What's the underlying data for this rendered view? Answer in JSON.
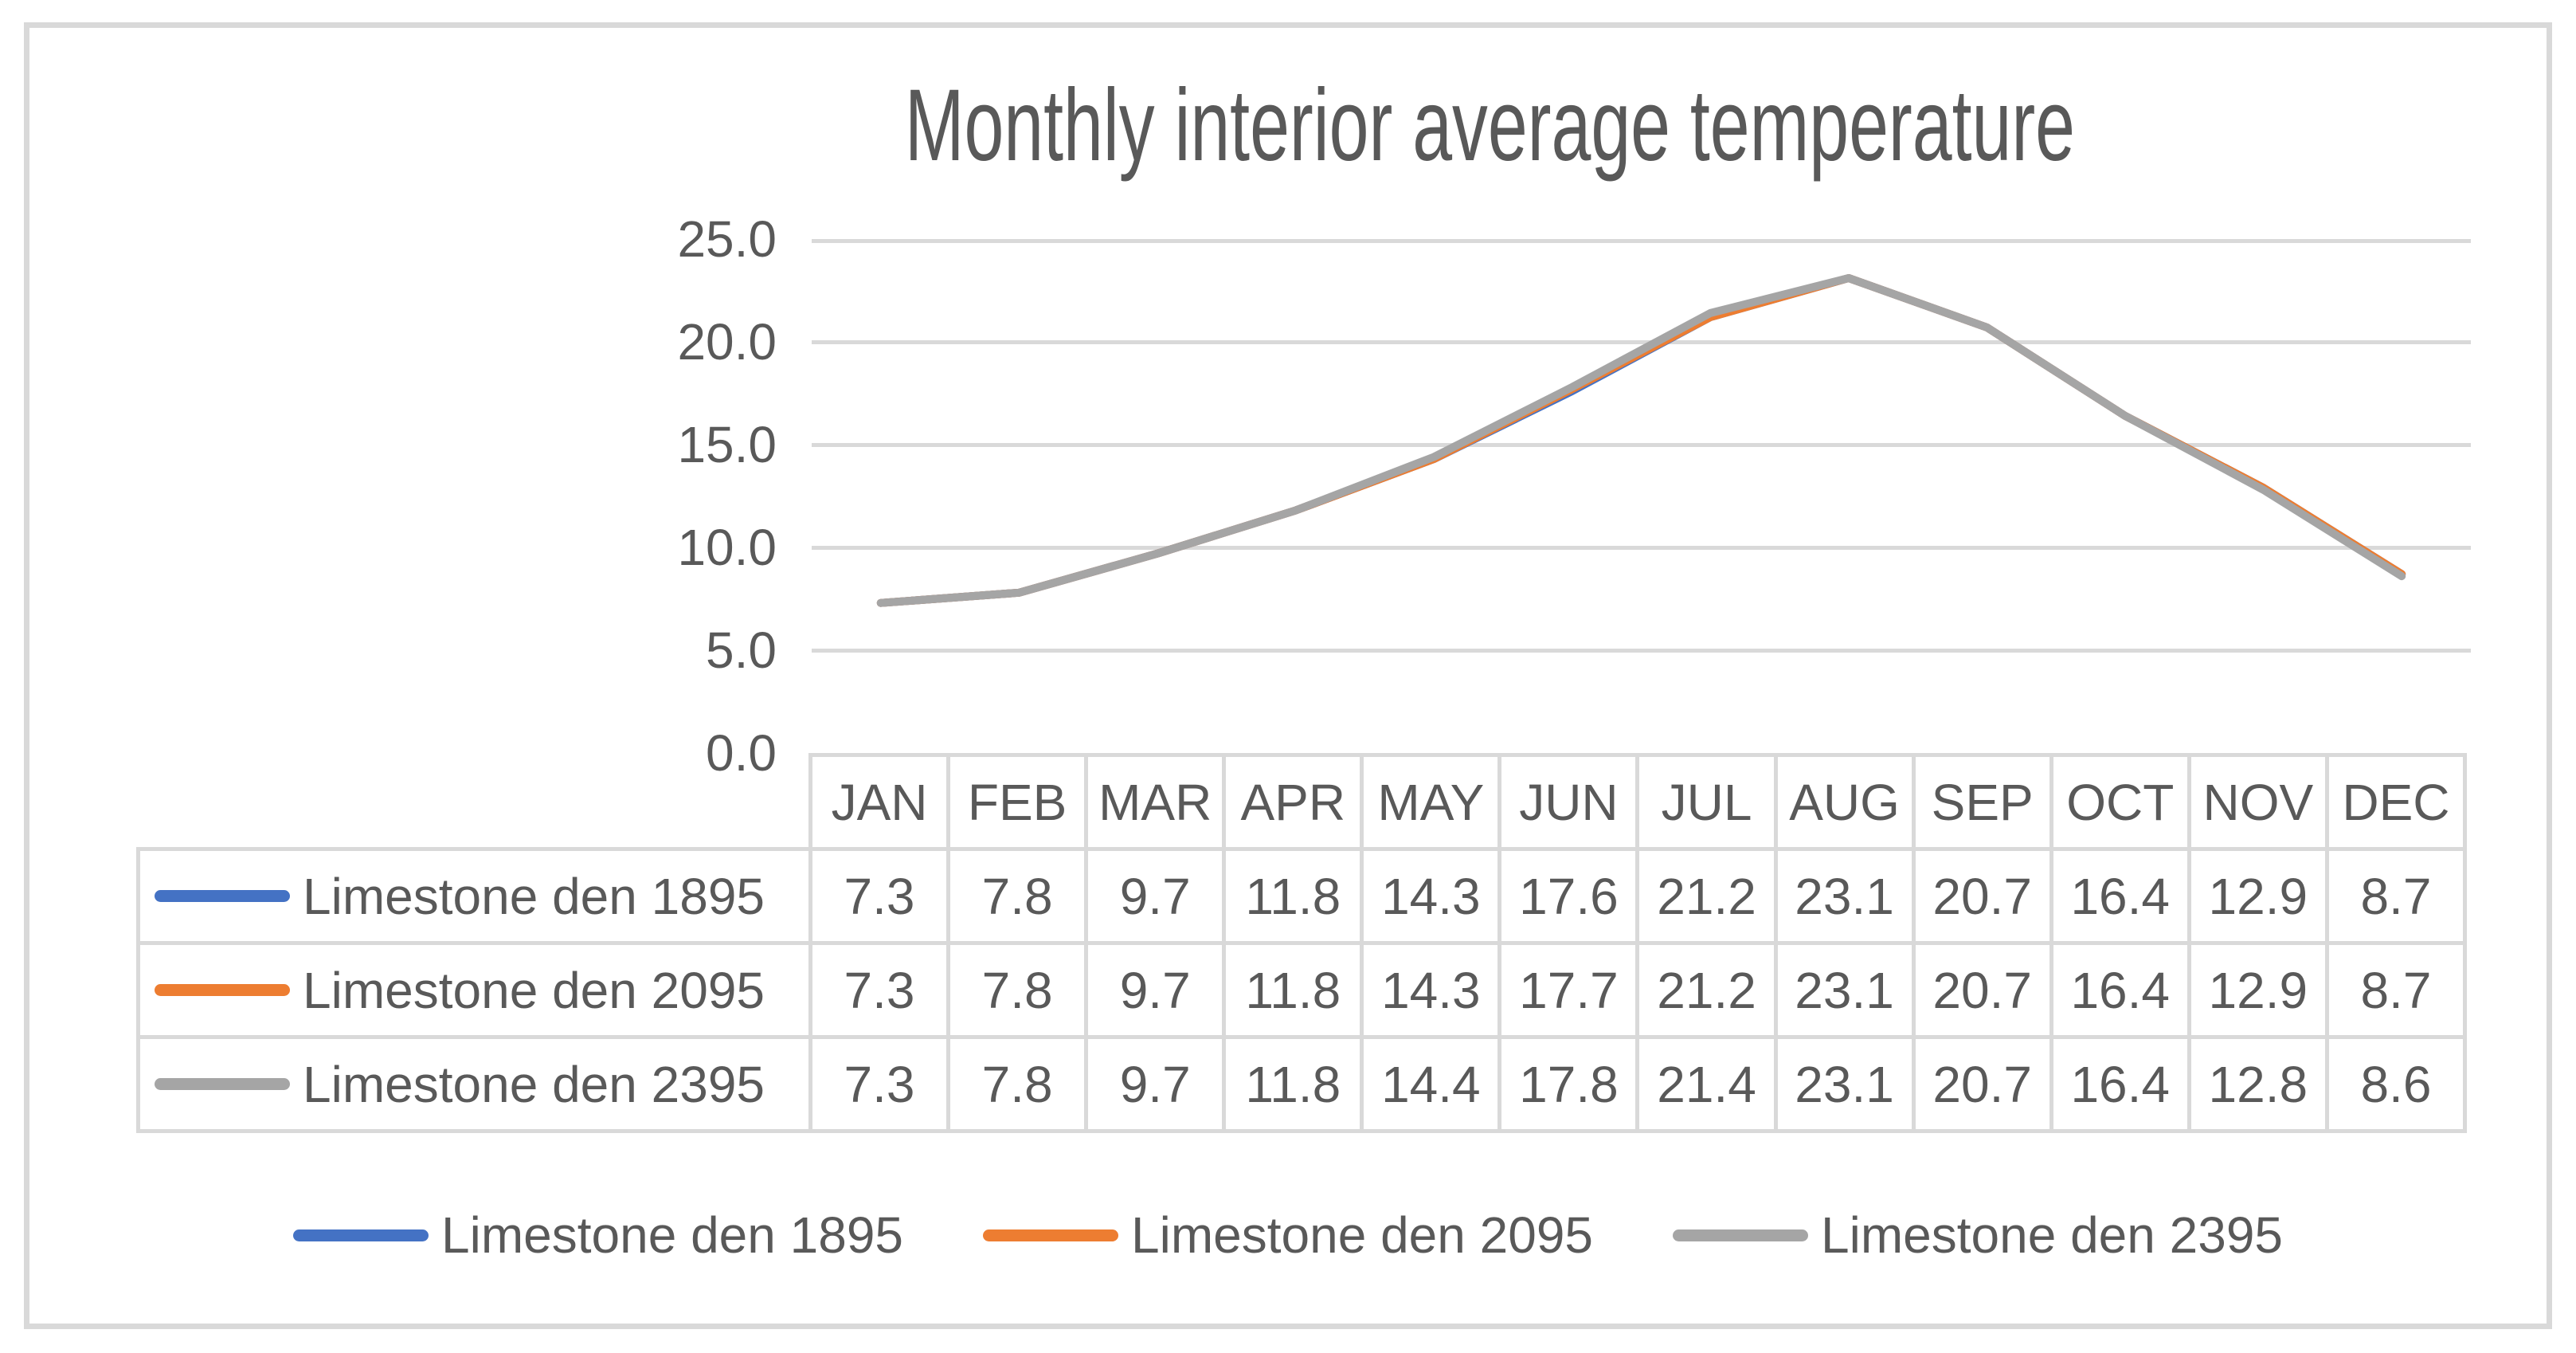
{
  "chart_data": {
    "type": "line",
    "title": "Monthly interior average temperature",
    "categories": [
      "JAN",
      "FEB",
      "MAR",
      "APR",
      "MAY",
      "JUN",
      "JUL",
      "AUG",
      "SEP",
      "OCT",
      "NOV",
      "DEC"
    ],
    "series": [
      {
        "name": "Limestone den 1895",
        "color": "#4472C4",
        "values": [
          7.3,
          7.8,
          9.7,
          11.8,
          14.3,
          17.6,
          21.2,
          23.1,
          20.7,
          16.4,
          12.9,
          8.7
        ]
      },
      {
        "name": "Limestone den 2095",
        "color": "#ED7D31",
        "values": [
          7.3,
          7.8,
          9.7,
          11.8,
          14.3,
          17.7,
          21.2,
          23.1,
          20.7,
          16.4,
          12.9,
          8.7
        ]
      },
      {
        "name": "Limestone den 2395",
        "color": "#A5A5A5",
        "values": [
          7.3,
          7.8,
          9.7,
          11.8,
          14.4,
          17.8,
          21.4,
          23.1,
          20.7,
          16.4,
          12.8,
          8.6
        ]
      }
    ],
    "xlabel": "",
    "ylabel": "",
    "ylim": [
      0,
      25
    ],
    "y_tick_labels": [
      "25.0",
      "20.0",
      "15.0",
      "10.0",
      "5.0",
      "0.0"
    ],
    "y_tick_values": [
      25,
      20,
      15,
      10,
      5,
      0
    ],
    "grid": true,
    "legend_position": "bottom",
    "data_table_shown": true,
    "value_decimals": 1
  },
  "styles": {
    "text_color": "#595959",
    "grid_color": "#D9D9D9",
    "table_border_color": "#D9D9D9",
    "frame_border_color": "#D9D9D9",
    "background": "#FFFFFF"
  }
}
